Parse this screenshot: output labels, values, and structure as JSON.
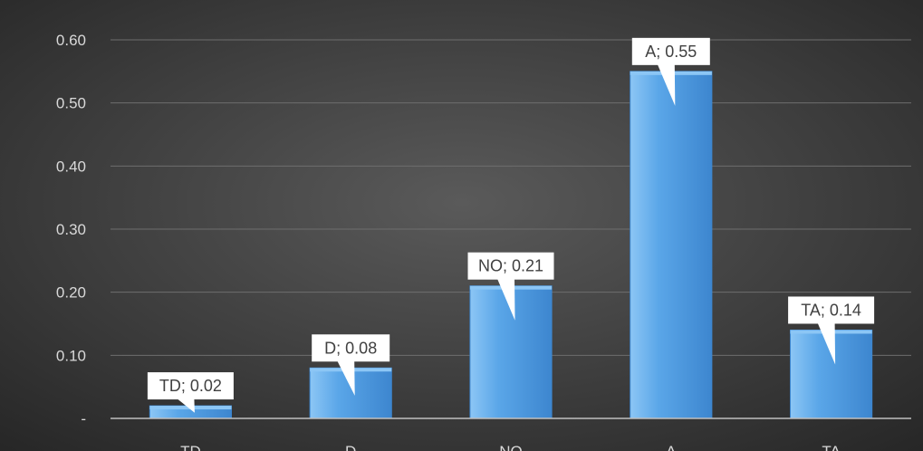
{
  "chart_data": {
    "type": "bar",
    "categories": [
      "TD",
      "D",
      "NO",
      "A",
      "TA"
    ],
    "values": [
      0.02,
      0.08,
      0.21,
      0.55,
      0.14
    ],
    "data_labels": [
      "TD;  0.02",
      "D;  0.08",
      "NO;  0.21",
      "A;  0.55",
      "TA;  0.14"
    ],
    "y_ticks": [
      0,
      0.1,
      0.2,
      0.3,
      0.4,
      0.5,
      0.6
    ],
    "y_tick_labels": [
      "-",
      "0.10",
      "0.20",
      "0.30",
      "0.40",
      "0.50",
      "0.60"
    ],
    "ylim": [
      0,
      0.6
    ],
    "grid": true,
    "legend": "none",
    "title": "",
    "xlabel": "",
    "ylabel": "",
    "colors": {
      "background_center": "#5a5a5a",
      "background_edge": "#262626",
      "bar": "#5aa6e8",
      "bar_highlight": "#8cc6f5",
      "bar_shade": "#3d86cf",
      "gridline": "#6e6e6e",
      "axis_line": "#bfbfbf",
      "tick_text": "#d9d9d9",
      "callout_fill": "#ffffff",
      "callout_text": "#404040"
    }
  }
}
